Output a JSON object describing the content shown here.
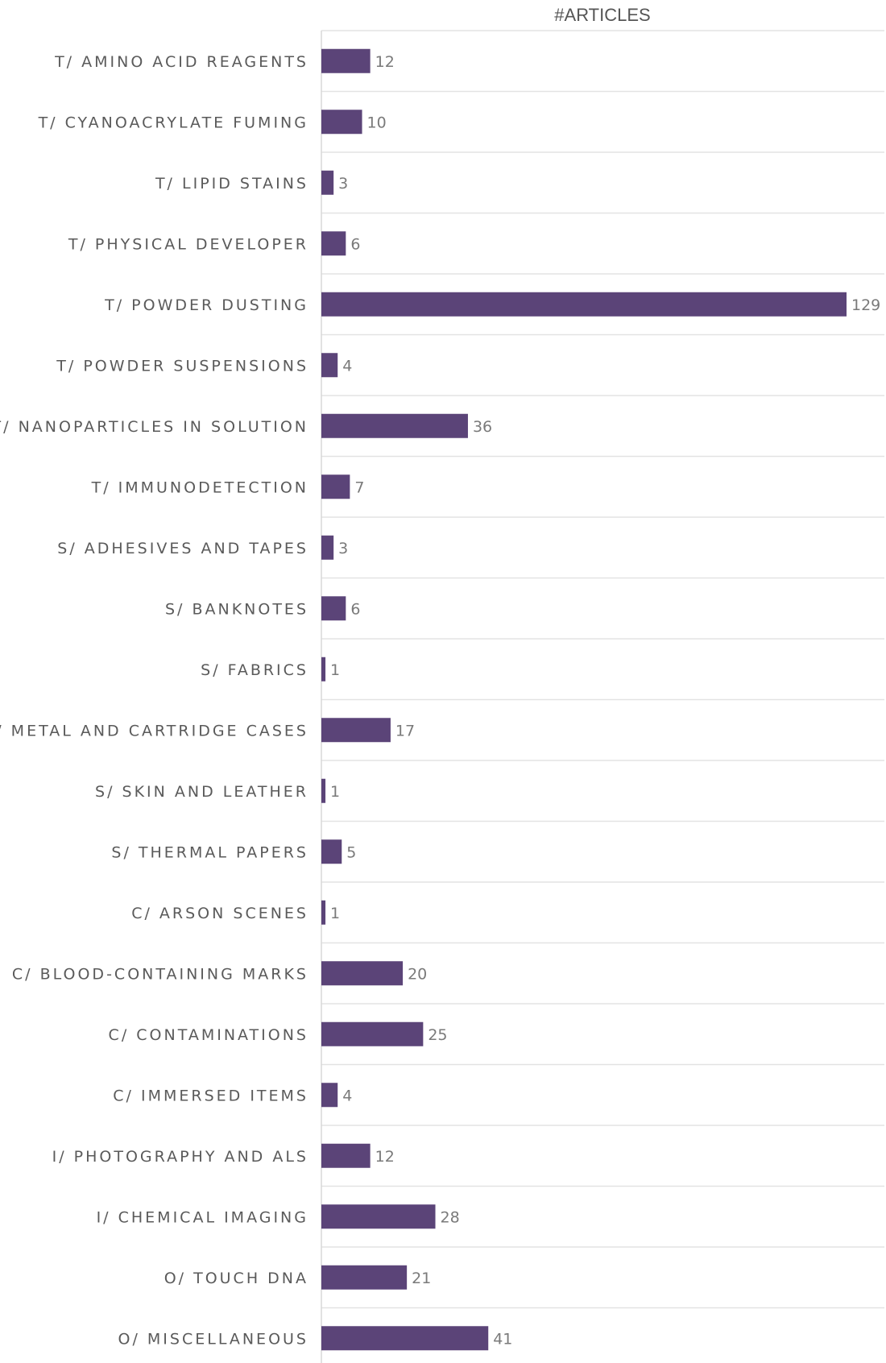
{
  "chart_data": {
    "type": "bar",
    "orientation": "horizontal",
    "title": "#ARTICLES",
    "categories": [
      "T/ AMINO ACID REAGENTS",
      "T/ CYANOACRYLATE FUMING",
      "T/ LIPID STAINS",
      "T/ PHYSICAL DEVELOPER",
      "T/ POWDER DUSTING",
      "T/ POWDER SUSPENSIONS",
      "T/ NANOPARTICLES IN SOLUTION",
      "T/ IMMUNODETECTION",
      "S/ ADHESIVES AND TAPES",
      "S/ BANKNOTES",
      "S/ FABRICS",
      "S/ METAL AND CARTRIDGE CASES",
      "S/ SKIN AND LEATHER",
      "S/ THERMAL PAPERS",
      "C/ ARSON SCENES",
      "C/ BLOOD-CONTAINING MARKS",
      "C/ CONTAMINATIONS",
      "C/ IMMERSED ITEMS",
      "I/ PHOTOGRAPHY AND ALS",
      "I/ CHEMICAL IMAGING",
      "O/ TOUCH DNA",
      "O/ MISCELLANEOUS"
    ],
    "values": [
      12,
      10,
      3,
      6,
      129,
      4,
      36,
      7,
      3,
      6,
      1,
      17,
      1,
      5,
      1,
      20,
      25,
      4,
      12,
      28,
      21,
      41
    ],
    "xlim": [
      0,
      129
    ],
    "grid": true,
    "bar_color": "#5b4478",
    "label_color": "#5a5a5a",
    "value_color": "#7a7a7a",
    "grid_color": "#e3e3e3"
  }
}
